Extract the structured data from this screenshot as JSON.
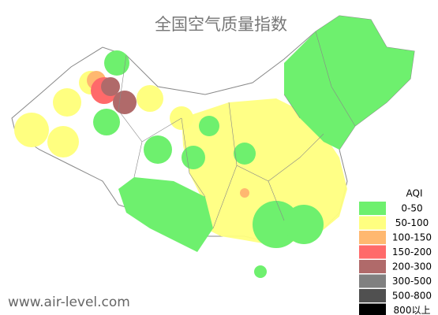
{
  "title": "全国空气质量指数",
  "legend": {
    "title": "AQI",
    "items": [
      {
        "label": "0-50",
        "color": "#6ef06e"
      },
      {
        "label": "50-100",
        "color": "#ffff80"
      },
      {
        "label": "100-150",
        "color": "#ffb870"
      },
      {
        "label": "150-200",
        "color": "#ff6a6a"
      },
      {
        "label": "200-300",
        "color": "#b06a6a"
      },
      {
        "label": "300-500",
        "color": "#808080"
      },
      {
        "label": "500-800",
        "color": "#505050"
      },
      {
        "label": "800以上",
        "color": "#000000"
      }
    ]
  },
  "watermark": "www.air-level.com"
}
